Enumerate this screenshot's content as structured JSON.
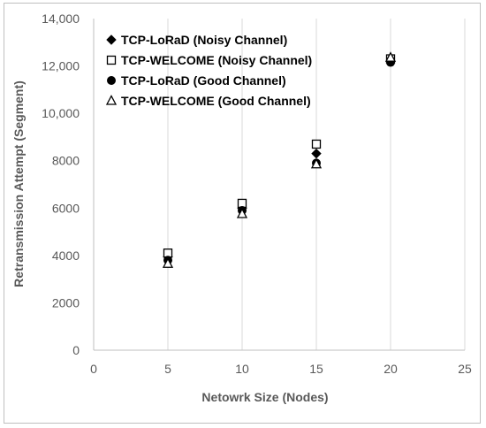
{
  "chart_data": {
    "type": "scatter",
    "xlabel": "Netowrk Size (Nodes)",
    "ylabel": "Retransmission Attempt (Segment)",
    "xlim": [
      0,
      25
    ],
    "ylim": [
      0,
      14000
    ],
    "x_ticks": [
      "0",
      "5",
      "10",
      "15",
      "20",
      "25"
    ],
    "y_ticks": [
      "0",
      "2000",
      "4000",
      "6000",
      "8000",
      "10,000",
      "12,000",
      "14,000"
    ],
    "grid": "vertical",
    "legend_position": "top-left",
    "series": [
      {
        "name": "TCP-LoRaD (Noisy Channel)",
        "marker": "diamond-filled",
        "x": [
          5,
          10,
          15,
          20
        ],
        "y": [
          3950,
          6000,
          8300,
          12200
        ]
      },
      {
        "name": "TCP-WELCOME (Noisy Channel)",
        "marker": "square-open",
        "x": [
          5,
          10,
          15,
          20
        ],
        "y": [
          4100,
          6200,
          8700,
          12300
        ]
      },
      {
        "name": "TCP-LoRaD (Good Channel)",
        "marker": "circle-filled",
        "x": [
          5,
          10,
          15,
          20
        ],
        "y": [
          3800,
          5900,
          7900,
          12150
        ]
      },
      {
        "name": "TCP-WELCOME (Good Channel)",
        "marker": "triangle-open",
        "x": [
          5,
          10,
          15,
          20
        ],
        "y": [
          3650,
          5750,
          7850,
          12350
        ]
      }
    ]
  }
}
